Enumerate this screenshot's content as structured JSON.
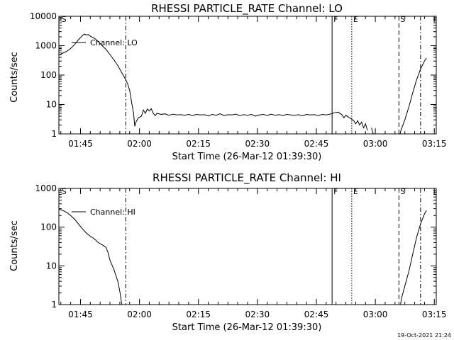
{
  "footer": {
    "timestamp": "19-Oct-2021 21:24"
  },
  "chart_data": [
    {
      "type": "line",
      "title": "RHESSI PARTICLE_RATE Channel: LO",
      "xlabel": "Start Time (26-Mar-12 01:39:30)",
      "ylabel": "Counts/sec",
      "yscale": "log",
      "xlim_minutes": [
        0,
        96
      ],
      "ylim": [
        1,
        10000
      ],
      "xticks": [
        {
          "t": 5.5,
          "label": "01:45"
        },
        {
          "t": 20.5,
          "label": "02:00"
        },
        {
          "t": 35.5,
          "label": "02:15"
        },
        {
          "t": 50.5,
          "label": "02:30"
        },
        {
          "t": 65.5,
          "label": "02:45"
        },
        {
          "t": 80.5,
          "label": "03:00"
        },
        {
          "t": 95.5,
          "label": "03:15"
        }
      ],
      "yticks": [
        {
          "v": 1,
          "label": "1"
        },
        {
          "v": 10,
          "label": "10"
        },
        {
          "v": 100,
          "label": "100"
        },
        {
          "v": 1000,
          "label": "1000"
        },
        {
          "v": 10000,
          "label": "10000"
        }
      ],
      "legend": {
        "label": "Channel: LO",
        "placement": "top-left"
      },
      "markers": [
        {
          "t": 0.3,
          "style": "none",
          "label": "S"
        },
        {
          "t": 17.0,
          "style": "dashdot",
          "label": ""
        },
        {
          "t": 69.5,
          "style": "solid",
          "label": "F"
        },
        {
          "t": 74.5,
          "style": "dotted",
          "label": "E"
        },
        {
          "t": 86.5,
          "style": "dashed",
          "label": "S"
        },
        {
          "t": 92.0,
          "style": "dashdot",
          "label": ""
        }
      ],
      "series": [
        {
          "segments": [
            [
              [
                0,
                480
              ],
              [
                1,
                560
              ],
              [
                2,
                650
              ],
              [
                3,
                800
              ],
              [
                4,
                1100
              ],
              [
                5,
                1600
              ],
              [
                6,
                2200
              ],
              [
                6.5,
                2500
              ],
              [
                7,
                2300
              ],
              [
                7.5,
                2400
              ],
              [
                8,
                2100
              ],
              [
                9,
                1800
              ],
              [
                10,
                1400
              ],
              [
                11,
                1000
              ],
              [
                12,
                750
              ],
              [
                13,
                500
              ],
              [
                14,
                330
              ],
              [
                15,
                210
              ],
              [
                16,
                120
              ],
              [
                17,
                70
              ],
              [
                17.5,
                50
              ],
              [
                18,
                30
              ],
              [
                18.5,
                12
              ],
              [
                19,
                5
              ],
              [
                19.3,
                1.8
              ],
              [
                19.6,
                2.5
              ],
              [
                20.2,
                3.5
              ],
              [
                21,
                4
              ],
              [
                21.5,
                6.5
              ],
              [
                22,
                5
              ],
              [
                22.5,
                7
              ],
              [
                23,
                6
              ],
              [
                23.5,
                7.2
              ],
              [
                24,
                5
              ],
              [
                24.5,
                4.2
              ],
              [
                25,
                5
              ],
              [
                26,
                4.6
              ],
              [
                27,
                4.8
              ],
              [
                28,
                4.3
              ],
              [
                29,
                4.7
              ],
              [
                30,
                4.4
              ],
              [
                31,
                4.5
              ],
              [
                32,
                4.3
              ],
              [
                33,
                4.6
              ],
              [
                34,
                4.2
              ],
              [
                35,
                4.6
              ],
              [
                36,
                4.4
              ],
              [
                37,
                4.5
              ],
              [
                38,
                4.1
              ],
              [
                39,
                4.6
              ],
              [
                40,
                4.3
              ],
              [
                41,
                4.8
              ],
              [
                42,
                4.2
              ],
              [
                43,
                4.5
              ],
              [
                44,
                4.4
              ],
              [
                45,
                4.7
              ],
              [
                46,
                4.2
              ],
              [
                47,
                4.5
              ],
              [
                48,
                4.3
              ],
              [
                49,
                4.6
              ],
              [
                50,
                4.0
              ],
              [
                51,
                4.4
              ],
              [
                52,
                4.6
              ],
              [
                53,
                4.2
              ],
              [
                54,
                4.7
              ],
              [
                55,
                4.3
              ],
              [
                56,
                4.5
              ],
              [
                57,
                4.2
              ],
              [
                58,
                4.6
              ],
              [
                59,
                4.4
              ],
              [
                60,
                4.3
              ],
              [
                61,
                4.5
              ],
              [
                62,
                4.1
              ],
              [
                63,
                4.6
              ],
              [
                64,
                4.4
              ],
              [
                65,
                4.5
              ],
              [
                66,
                4.2
              ],
              [
                67,
                4.6
              ],
              [
                68,
                4.4
              ],
              [
                69,
                4.7
              ],
              [
                70,
                5.2
              ],
              [
                71,
                5.5
              ],
              [
                72,
                4.5
              ],
              [
                72.5,
                3.5
              ],
              [
                73,
                4.3
              ],
              [
                74,
                3.5
              ],
              [
                75,
                2.8
              ],
              [
                75.5,
                2.2
              ],
              [
                76,
                2.8
              ],
              [
                76.5,
                2.0
              ],
              [
                77,
                2.5
              ],
              [
                77.5,
                1.6
              ],
              [
                78,
                2.2
              ],
              [
                78.5,
                1.3
              ]
            ],
            [
              [
                79.5,
                1.6
              ],
              [
                80,
                1.0
              ]
            ],
            [
              [
                86.8,
                1.0
              ],
              [
                87,
                1.3
              ],
              [
                88,
                3
              ],
              [
                89,
                8
              ],
              [
                90,
                25
              ],
              [
                91,
                70
              ],
              [
                92,
                160
              ],
              [
                93,
                300
              ],
              [
                93.5,
                380
              ]
            ]
          ]
        }
      ]
    },
    {
      "type": "line",
      "title": "RHESSI PARTICLE_RATE Channel: HI",
      "xlabel": "Start Time (26-Mar-12 01:39:30)",
      "ylabel": "Counts/sec",
      "yscale": "log",
      "xlim_minutes": [
        0,
        96
      ],
      "ylim": [
        1,
        1000
      ],
      "xticks": [
        {
          "t": 5.5,
          "label": "01:45"
        },
        {
          "t": 20.5,
          "label": "02:00"
        },
        {
          "t": 35.5,
          "label": "02:15"
        },
        {
          "t": 50.5,
          "label": "02:30"
        },
        {
          "t": 65.5,
          "label": "02:45"
        },
        {
          "t": 80.5,
          "label": "03:00"
        },
        {
          "t": 95.5,
          "label": "03:15"
        }
      ],
      "yticks": [
        {
          "v": 1,
          "label": "1"
        },
        {
          "v": 10,
          "label": "10"
        },
        {
          "v": 100,
          "label": "100"
        },
        {
          "v": 1000,
          "label": "1000"
        }
      ],
      "legend": {
        "label": "Channel: HI",
        "placement": "top-left"
      },
      "markers": [
        {
          "t": 0.3,
          "style": "none",
          "label": "S"
        },
        {
          "t": 17.0,
          "style": "dashdot",
          "label": ""
        },
        {
          "t": 69.5,
          "style": "solid",
          "label": "F"
        },
        {
          "t": 74.5,
          "style": "dotted",
          "label": "E"
        },
        {
          "t": 86.5,
          "style": "dashed",
          "label": "S"
        },
        {
          "t": 92.0,
          "style": "dashdot",
          "label": ""
        }
      ],
      "series": [
        {
          "segments": [
            [
              [
                0,
                290
              ],
              [
                1,
                270
              ],
              [
                2,
                240
              ],
              [
                3,
                200
              ],
              [
                4,
                160
              ],
              [
                5,
                120
              ],
              [
                6,
                90
              ],
              [
                7,
                70
              ],
              [
                8,
                58
              ],
              [
                9,
                50
              ],
              [
                10,
                40
              ],
              [
                11,
                35
              ],
              [
                12,
                30
              ],
              [
                12.5,
                22
              ],
              [
                13,
                14
              ],
              [
                14,
                8
              ],
              [
                15,
                4
              ],
              [
                15.5,
                2.2
              ],
              [
                16,
                1.0
              ]
            ],
            [
              [
                86.9,
                1.0
              ],
              [
                87.2,
                1.5
              ],
              [
                88,
                3
              ],
              [
                89,
                7
              ],
              [
                90,
                20
              ],
              [
                91,
                55
              ],
              [
                92,
                120
              ],
              [
                93,
                220
              ],
              [
                93.5,
                270
              ]
            ]
          ]
        }
      ]
    }
  ]
}
